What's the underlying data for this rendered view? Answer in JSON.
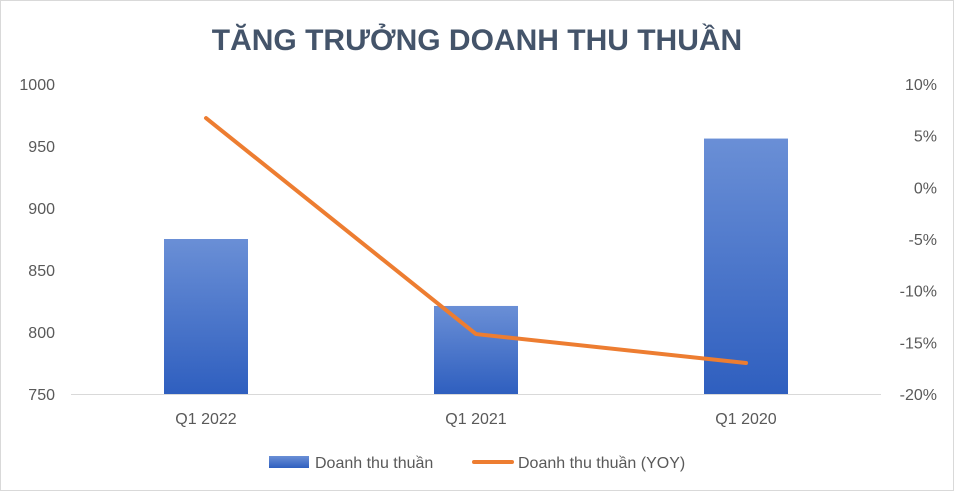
{
  "chart_data": {
    "type": "bar",
    "title": "TĂNG TRƯỞNG DOANH THU THUẦN",
    "categories": [
      "Q1 2022",
      "Q1 2021",
      "Q1 2020"
    ],
    "series": [
      {
        "name": "Doanh thu thuần",
        "type": "bar",
        "axis": "left",
        "color": "#4472c4",
        "values": [
          875,
          821,
          956
        ]
      },
      {
        "name": "Doanh thu thuần (YOY)",
        "type": "line",
        "axis": "right",
        "color": "#ed7d31",
        "values": [
          6.7,
          -14.2,
          -17.0
        ]
      }
    ],
    "y_left": {
      "min": 750,
      "max": 1000,
      "step": 50,
      "tick_labels": [
        "750",
        "800",
        "850",
        "900",
        "950",
        "1000"
      ]
    },
    "y_right": {
      "min": -20,
      "max": 10,
      "step": 5,
      "tick_labels": [
        "-20%",
        "-15%",
        "-10%",
        "-5%",
        "0%",
        "5%",
        "10%"
      ]
    },
    "grid": false,
    "legend_position": "bottom"
  }
}
